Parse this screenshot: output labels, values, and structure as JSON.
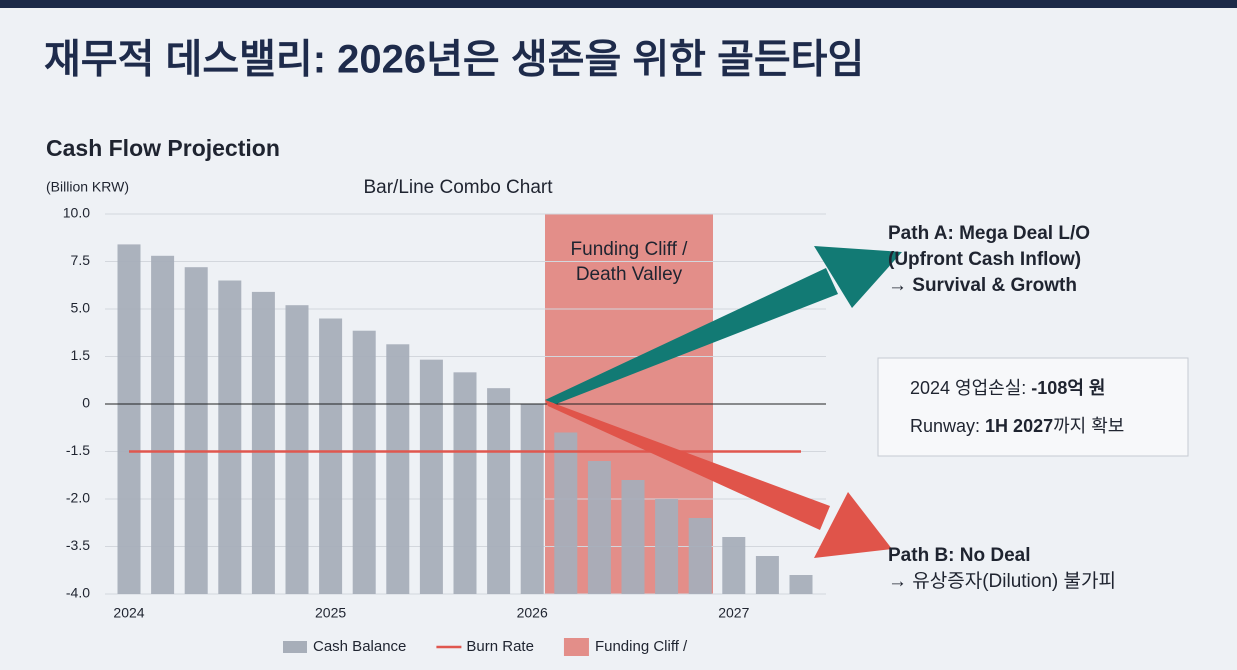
{
  "title": "재무적 데스밸리: 2026년은 생존을 위한 골든타임",
  "chart_data": {
    "type": "bar",
    "heading": "Cash Flow Projection",
    "subtitle": "Bar/Line Combo Chart",
    "y_label": "(Billion KRW)",
    "categories": [
      "2024",
      null,
      null,
      null,
      null,
      null,
      "2025",
      null,
      null,
      null,
      null,
      null,
      "2026",
      null,
      null,
      null,
      null,
      null,
      "2027",
      null,
      null
    ],
    "series": [
      {
        "name": "Cash Balance",
        "type": "bar",
        "color": "#a7aeb9",
        "values": [
          8.4,
          7.8,
          7.2,
          6.5,
          5.9,
          5.2,
          4.3,
          3.4,
          2.4,
          1.4,
          1.0,
          0.5,
          0,
          -0.9,
          -1.6,
          -1.8,
          -2.0,
          -2.6,
          -3.2,
          -3.6,
          -3.8
        ]
      },
      {
        "name": "Burn Rate",
        "type": "line",
        "color": "#e0574f",
        "values": [
          -1.5,
          -1.5,
          -1.5,
          -1.5,
          -1.5,
          -1.5,
          -1.5,
          -1.5,
          -1.5,
          -1.5,
          -1.5,
          -1.5,
          -1.5,
          -1.5,
          -1.5,
          -1.5,
          -1.5,
          -1.5,
          -1.5,
          -1.5,
          -1.5
        ]
      }
    ],
    "ylim": [
      -4,
      10
    ],
    "yticks": [
      {
        "value": -4,
        "label": "-4.0"
      },
      -3.5,
      {
        "value": -2,
        "label": "-2.0"
      },
      -1.5,
      0,
      1.5,
      {
        "value": 5,
        "label": "5.0"
      },
      7.5,
      {
        "value": 10,
        "label": "10.0"
      }
    ],
    "grid": true,
    "shaded_region": {
      "label": "Funding Cliff / Death Valley",
      "legend": "Funding Cliff /",
      "color": "#e38e89"
    }
  },
  "path_a": [
    "Path A: Mega Deal L/O",
    "(Upfront Cash Inflow)",
    "→ Survival & Growth"
  ],
  "path_b": [
    "Path B: No Deal",
    "→ 유상증자(Dilution) 불가피"
  ],
  "info_box": [
    {
      "text": "2024 영업손실: ",
      "bold": "-108억 원"
    },
    {
      "text": "Runway: ",
      "bold": "1H 2027",
      "suffix": "까지 확보"
    }
  ]
}
